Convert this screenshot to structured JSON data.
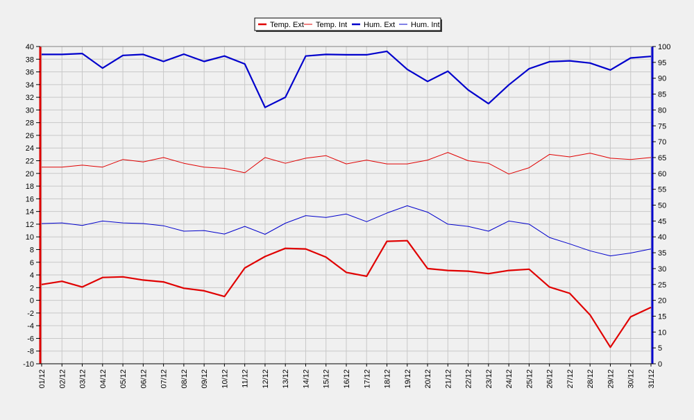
{
  "chart_data": {
    "type": "line",
    "title": "",
    "xlabel": "",
    "ylabel": "",
    "categories": [
      "01/12",
      "02/12",
      "03/12",
      "04/12",
      "05/12",
      "06/12",
      "07/12",
      "08/12",
      "09/12",
      "10/12",
      "11/12",
      "12/12",
      "13/12",
      "14/12",
      "15/12",
      "16/12",
      "17/12",
      "18/12",
      "19/12",
      "20/12",
      "21/12",
      "22/12",
      "23/12",
      "24/12",
      "25/12",
      "26/12",
      "27/12",
      "28/12",
      "29/12",
      "30/12",
      "31/12"
    ],
    "y_left": {
      "min": -10,
      "max": 40,
      "step": 2,
      "color": "#e00000"
    },
    "y_right": {
      "min": 0,
      "max": 100,
      "step": 5,
      "color": "#0000cc"
    },
    "grid": true,
    "legend_position": "top-right",
    "series": [
      {
        "name": "Temp. Ext",
        "axis": "left",
        "color": "#e00000",
        "weight": "bold",
        "values": [
          2.5,
          3.0,
          2.1,
          3.6,
          3.7,
          3.2,
          2.9,
          1.9,
          1.5,
          0.6,
          5.1,
          6.9,
          8.2,
          8.1,
          6.8,
          4.4,
          3.8,
          9.3,
          9.4,
          5.0,
          4.7,
          4.6,
          4.2,
          4.7,
          4.9,
          2.1,
          1.1,
          -2.3,
          -7.4,
          -2.6,
          -1.1
        ]
      },
      {
        "name": "Temp. Int",
        "axis": "left",
        "color": "#e00000",
        "weight": "thin",
        "values": [
          21.0,
          21.0,
          21.3,
          21.0,
          22.2,
          21.8,
          22.5,
          21.6,
          21.0,
          20.8,
          20.1,
          22.5,
          21.6,
          22.4,
          22.8,
          21.5,
          22.1,
          21.5,
          21.5,
          22.1,
          23.3,
          22.0,
          21.6,
          19.9,
          20.9,
          23.0,
          22.6,
          23.2,
          22.4,
          22.2,
          22.5
        ]
      },
      {
        "name": "Hum. Ext",
        "axis": "right",
        "color": "#0000cc",
        "weight": "bold",
        "values": [
          97.5,
          97.5,
          97.8,
          93.2,
          97.2,
          97.5,
          95.3,
          97.6,
          95.3,
          97.0,
          94.5,
          80.8,
          84.0,
          97.0,
          97.5,
          97.4,
          97.4,
          98.5,
          92.8,
          89.0,
          92.2,
          86.3,
          82.0,
          87.9,
          93.0,
          95.2,
          95.5,
          94.8,
          92.6,
          96.4,
          96.9
        ]
      },
      {
        "name": "Hum. Int",
        "axis": "right",
        "color": "#0000cc",
        "weight": "thin",
        "values": [
          44.2,
          44.4,
          43.6,
          45.0,
          44.4,
          44.2,
          43.5,
          41.8,
          42.0,
          40.9,
          43.3,
          40.8,
          44.3,
          46.7,
          46.1,
          47.2,
          44.8,
          47.5,
          49.8,
          47.8,
          44.0,
          43.3,
          41.8,
          45.0,
          44.0,
          39.8,
          37.8,
          35.6,
          34.0,
          34.9,
          36.2
        ]
      }
    ]
  }
}
